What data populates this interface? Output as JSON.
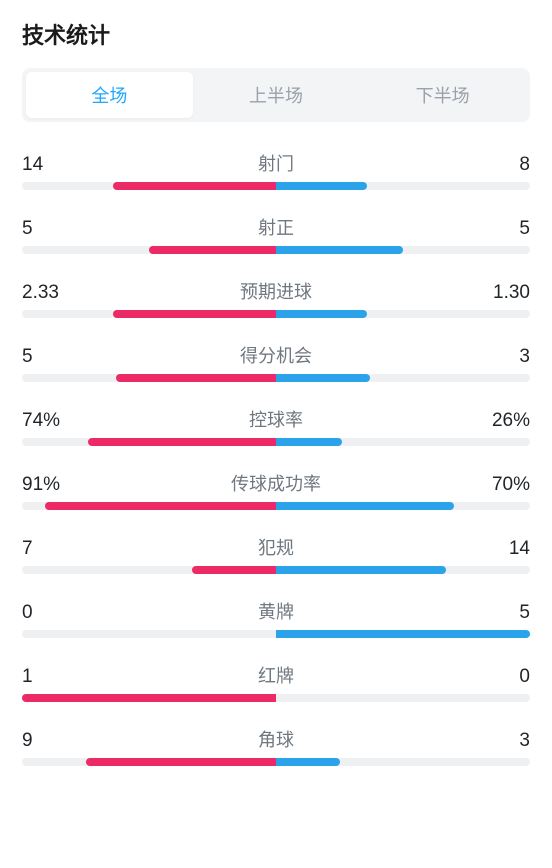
{
  "title": "技术统计",
  "tabs": [
    {
      "label": "全场",
      "active": true
    },
    {
      "label": "上半场",
      "active": false
    },
    {
      "label": "下半场",
      "active": false
    }
  ],
  "colors": {
    "leftTeam": "#ec2a65",
    "rightTeam": "#2aa3eb",
    "track": "#eef0f2",
    "tabActiveText": "#1ea7ff",
    "tabInactiveText": "#9aa1ab",
    "tabBg": "#f3f4f6",
    "labelColor": "#6f7780",
    "valueColor": "#1f2429"
  },
  "barHeight": 8,
  "stats": [
    {
      "label": "射门",
      "leftDisplay": "14",
      "rightDisplay": "8",
      "leftPct": 64,
      "rightPct": 36
    },
    {
      "label": "射正",
      "leftDisplay": "5",
      "rightDisplay": "5",
      "leftPct": 50,
      "rightPct": 50
    },
    {
      "label": "预期进球",
      "leftDisplay": "2.33",
      "rightDisplay": "1.30",
      "leftPct": 64,
      "rightPct": 36
    },
    {
      "label": "得分机会",
      "leftDisplay": "5",
      "rightDisplay": "3",
      "leftPct": 63,
      "rightPct": 37
    },
    {
      "label": "控球率",
      "leftDisplay": "74%",
      "rightDisplay": "26%",
      "leftPct": 74,
      "rightPct": 26
    },
    {
      "label": "传球成功率",
      "leftDisplay": "91%",
      "rightDisplay": "70%",
      "leftPct": 91,
      "rightPct": 70
    },
    {
      "label": "犯规",
      "leftDisplay": "7",
      "rightDisplay": "14",
      "leftPct": 33,
      "rightPct": 67
    },
    {
      "label": "黄牌",
      "leftDisplay": "0",
      "rightDisplay": "5",
      "leftPct": 0,
      "rightPct": 100
    },
    {
      "label": "红牌",
      "leftDisplay": "1",
      "rightDisplay": "0",
      "leftPct": 100,
      "rightPct": 0
    },
    {
      "label": "角球",
      "leftDisplay": "9",
      "rightDisplay": "3",
      "leftPct": 75,
      "rightPct": 25
    }
  ]
}
